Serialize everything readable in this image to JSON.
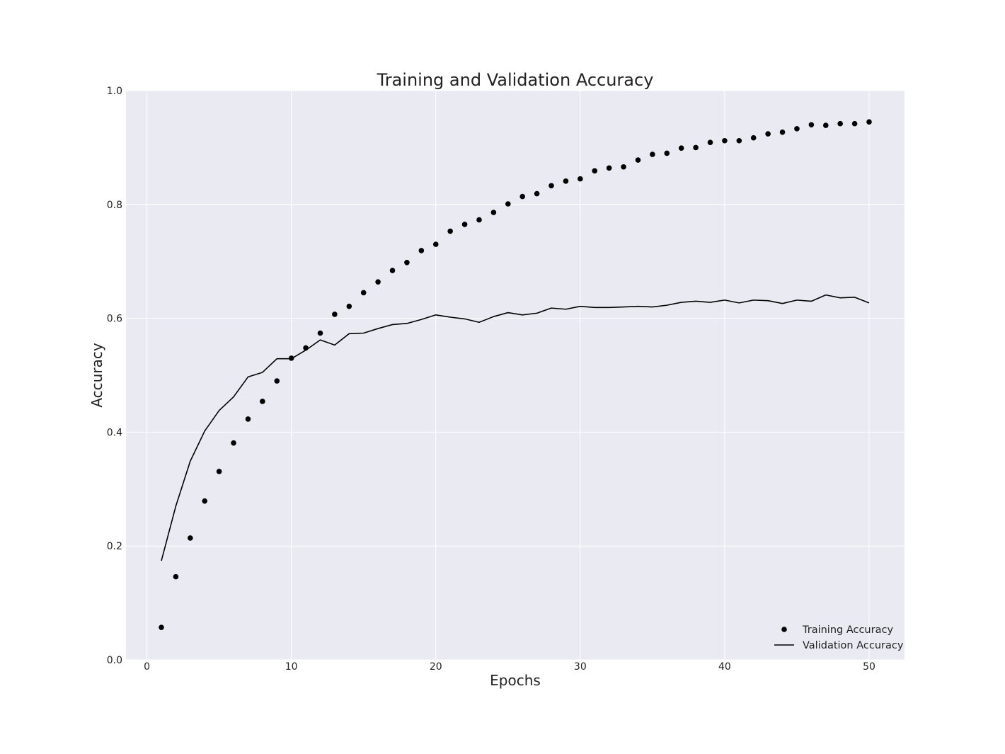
{
  "chart_data": {
    "type": "line",
    "title": "Training and Validation Accuracy",
    "xlabel": "Epochs",
    "ylabel": "Accuracy",
    "xlim": [
      -1.45,
      52.45
    ],
    "ylim": [
      0.0,
      1.0
    ],
    "xticks": [
      0,
      10,
      20,
      30,
      40,
      50
    ],
    "yticks": [
      0.0,
      0.2,
      0.4,
      0.6,
      0.8,
      1.0
    ],
    "grid": true,
    "style": "seaborn-darkgrid",
    "colors": {
      "plot_background": "#EAEAF2",
      "grid": "#FFFFFF",
      "series": "#000000"
    },
    "legend_position": "lower-right",
    "x": [
      1,
      2,
      3,
      4,
      5,
      6,
      7,
      8,
      9,
      10,
      11,
      12,
      13,
      14,
      15,
      16,
      17,
      18,
      19,
      20,
      21,
      22,
      23,
      24,
      25,
      26,
      27,
      28,
      29,
      30,
      31,
      32,
      33,
      34,
      35,
      36,
      37,
      38,
      39,
      40,
      41,
      42,
      43,
      44,
      45,
      46,
      47,
      48,
      49,
      50
    ],
    "series": [
      {
        "name": "Training Accuracy",
        "style": "dots",
        "values": [
          0.057,
          0.146,
          0.214,
          0.279,
          0.331,
          0.381,
          0.423,
          0.454,
          0.49,
          0.53,
          0.548,
          0.574,
          0.607,
          0.621,
          0.645,
          0.664,
          0.684,
          0.698,
          0.719,
          0.73,
          0.753,
          0.765,
          0.773,
          0.786,
          0.801,
          0.814,
          0.819,
          0.833,
          0.841,
          0.845,
          0.859,
          0.864,
          0.866,
          0.878,
          0.888,
          0.89,
          0.899,
          0.9,
          0.909,
          0.912,
          0.912,
          0.917,
          0.924,
          0.927,
          0.933,
          0.94,
          0.939,
          0.942,
          0.942,
          0.945
        ]
      },
      {
        "name": "Validation Accuracy",
        "style": "line",
        "values": [
          0.174,
          0.27,
          0.349,
          0.402,
          0.438,
          0.462,
          0.497,
          0.505,
          0.529,
          0.529,
          0.544,
          0.562,
          0.553,
          0.573,
          0.574,
          0.582,
          0.589,
          0.591,
          0.598,
          0.606,
          0.602,
          0.599,
          0.593,
          0.603,
          0.61,
          0.606,
          0.609,
          0.618,
          0.616,
          0.621,
          0.619,
          0.619,
          0.62,
          0.621,
          0.62,
          0.623,
          0.628,
          0.63,
          0.628,
          0.632,
          0.627,
          0.632,
          0.631,
          0.626,
          0.632,
          0.63,
          0.641,
          0.636,
          0.637,
          0.627
        ]
      }
    ]
  }
}
